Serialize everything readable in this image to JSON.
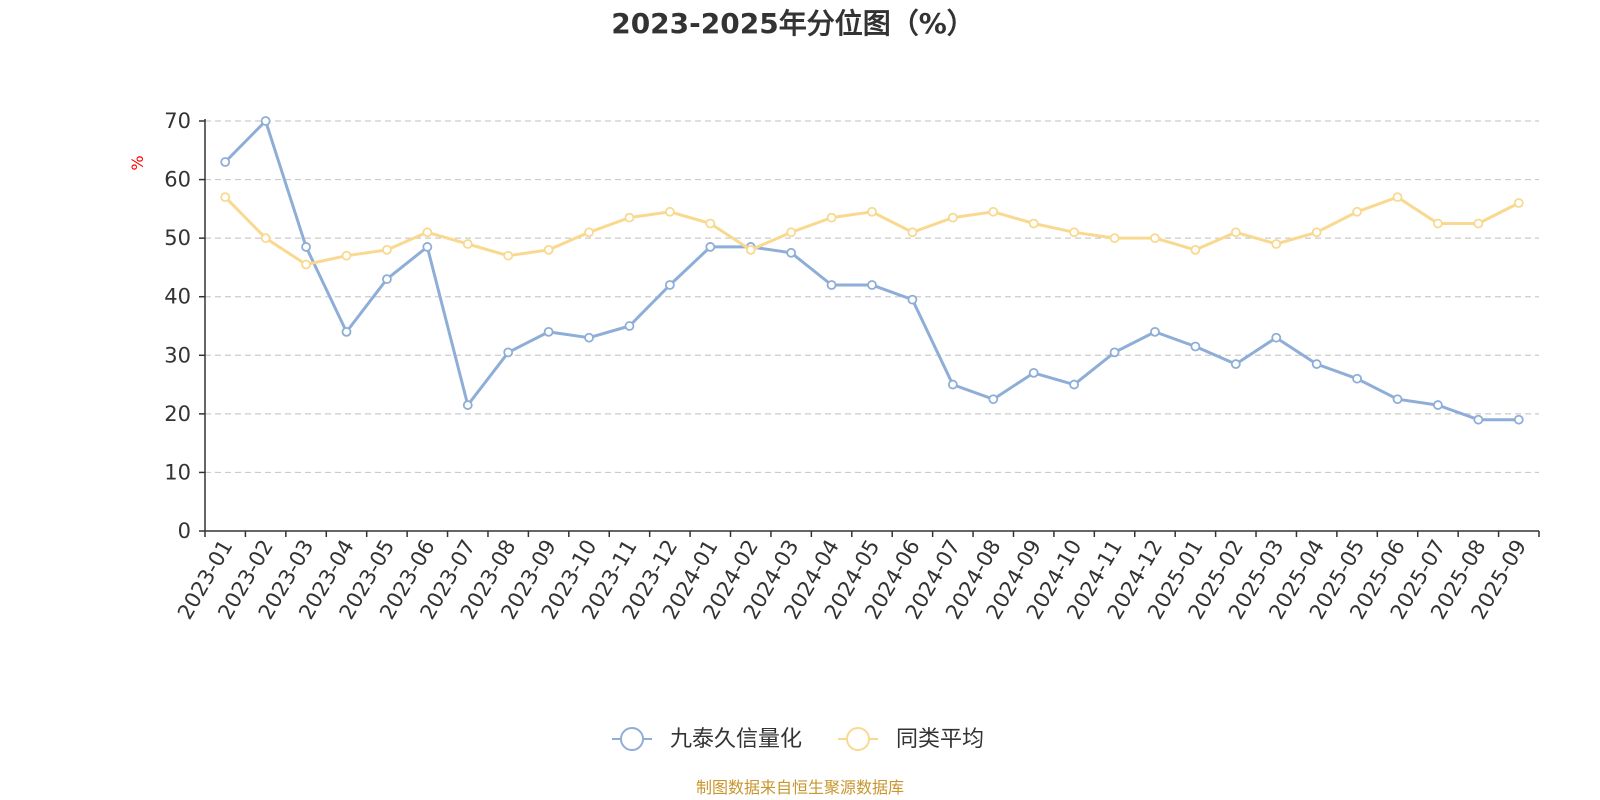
{
  "chart_data": {
    "type": "line",
    "title": "2023-2025年分位图（%）",
    "ylabel": "%",
    "xlabel": "",
    "ylim": [
      0,
      70
    ],
    "yticks": [
      0,
      10,
      20,
      30,
      40,
      50,
      60,
      70
    ],
    "grid": true,
    "legend_position": "bottom",
    "categories": [
      "2023-01",
      "2023-02",
      "2023-03",
      "2023-04",
      "2023-05",
      "2023-06",
      "2023-07",
      "2023-08",
      "2023-09",
      "2023-10",
      "2023-11",
      "2023-12",
      "2024-01",
      "2024-02",
      "2024-03",
      "2024-04",
      "2024-05",
      "2024-06",
      "2024-07",
      "2024-08",
      "2024-09",
      "2024-10",
      "2024-11",
      "2024-12",
      "2025-01",
      "2025-02",
      "2025-03",
      "2025-04",
      "2025-05",
      "2025-06",
      "2025-07",
      "2025-08",
      "2025-09"
    ],
    "series": [
      {
        "name": "九泰久信量化",
        "color": "#8eaed8",
        "values": [
          63,
          70,
          48.5,
          34,
          43,
          48.5,
          21.5,
          30.5,
          34,
          33,
          35,
          42,
          48.5,
          48.5,
          47.5,
          42,
          42,
          39.5,
          25,
          22.5,
          27,
          25,
          30.5,
          34,
          31.5,
          28.5,
          33,
          28.5,
          26,
          22.5,
          21.5,
          19,
          19
        ]
      },
      {
        "name": "同类平均",
        "color": "#f9d98f",
        "values": [
          57,
          50,
          45.5,
          47,
          48,
          51,
          49,
          47,
          48,
          51,
          53.5,
          54.5,
          52.5,
          48,
          51,
          53.5,
          54.5,
          51,
          53.5,
          54.5,
          52.5,
          51,
          50,
          50,
          48,
          51,
          49,
          51,
          54.5,
          57,
          52.5,
          52.5,
          56
        ]
      }
    ]
  },
  "colors": {
    "unit_label": "#ff0000",
    "source_text": "#c8962d",
    "axis": "#333333",
    "grid": "#cccccc"
  },
  "source": "制图数据来自恒生聚源数据库"
}
